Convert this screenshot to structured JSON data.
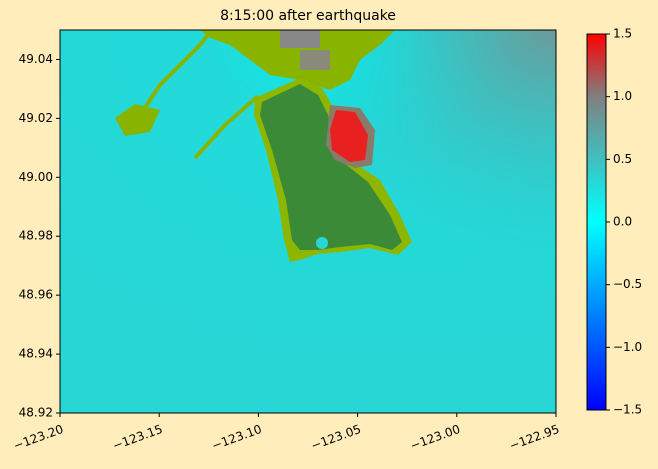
{
  "chart_data": {
    "type": "image",
    "title": "8:15:00 after earthquake",
    "xlim": [
      -123.2,
      -122.95
    ],
    "xticks": [
      {
        "value": -123.2,
        "label": "−123.20"
      },
      {
        "value": -123.15,
        "label": "−123.15"
      },
      {
        "value": -123.1,
        "label": "−123.10"
      },
      {
        "value": -123.05,
        "label": "−123.05"
      },
      {
        "value": -123.0,
        "label": "−123.00"
      },
      {
        "value": -122.95,
        "label": "−122.95"
      }
    ],
    "ylim": [
      48.92,
      49.05
    ],
    "yticks": [
      48.92,
      48.94,
      48.96,
      48.98,
      {
        "value": 49.0,
        "label": "49.00"
      },
      49.02,
      49.04
    ],
    "colorbar": {
      "lim": [
        -1.5,
        1.5
      ],
      "ticks": [
        {
          "value": -1.5,
          "label": "−1.5"
        },
        {
          "value": -1.0,
          "label": "−1.0"
        },
        {
          "value": -0.5,
          "label": "−0.5"
        },
        {
          "value": 0.0,
          "label": "0.0"
        },
        0.5,
        {
          "value": 1.0,
          "label": "1.0"
        },
        1.5
      ],
      "colors": [
        "#0000ff",
        "#0055ff",
        "#00aaff",
        "#00ffff",
        "#40c0c0",
        "#808080",
        "#ff0000"
      ]
    }
  }
}
